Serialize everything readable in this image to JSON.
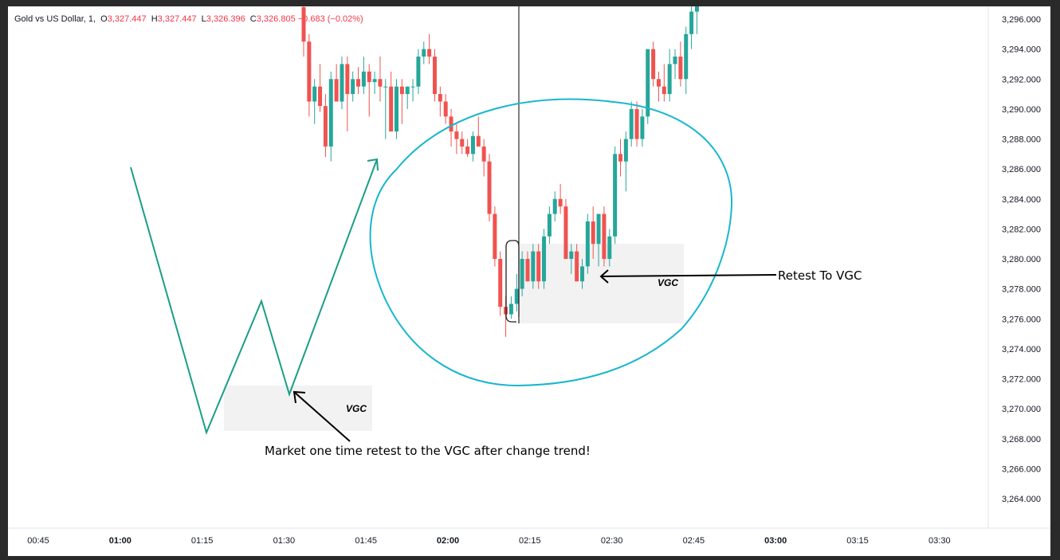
{
  "legend": {
    "symbol": "Gold vs US Dollar, 1,",
    "o_label": "O",
    "o_value": "3,327.447",
    "h_label": "H",
    "h_value": "3,327.447",
    "l_label": "L",
    "l_value": "3,326.396",
    "c_label": "C",
    "c_value": "3,326.805",
    "change": "−0.683 (−0.02%)"
  },
  "colors": {
    "up": "#26a69a",
    "down": "#ef5350",
    "circle": "#19b6cf",
    "zigzag": "#1a9e86",
    "zone": "#f2f2f2"
  },
  "annotations": {
    "main_text": "Market one time retest to the VGC after change trend!",
    "retest_text": "Retest To VGC",
    "vgc_left": "VGC",
    "vgc_right": "VGC"
  },
  "chart_data": {
    "type": "candlestick",
    "price_ticks": [
      "3,296.000",
      "3,294.000",
      "3,292.000",
      "3,290.000",
      "3,288.000",
      "3,286.000",
      "3,284.000",
      "3,282.000",
      "3,280.000",
      "3,278.000",
      "3,276.000",
      "3,274.000",
      "3,272.000",
      "3,270.000",
      "3,268.000",
      "3,266.000",
      "3,264.000"
    ],
    "time_ticks": [
      {
        "label": "00:45",
        "bold": false
      },
      {
        "label": "01:00",
        "bold": true
      },
      {
        "label": "01:15",
        "bold": false
      },
      {
        "label": "01:30",
        "bold": false
      },
      {
        "label": "01:45",
        "bold": false
      },
      {
        "label": "02:00",
        "bold": true
      },
      {
        "label": "02:15",
        "bold": false
      },
      {
        "label": "02:30",
        "bold": false
      },
      {
        "label": "02:45",
        "bold": false
      },
      {
        "label": "03:00",
        "bold": true
      },
      {
        "label": "03:15",
        "bold": false
      },
      {
        "label": "03:30",
        "bold": false
      }
    ],
    "ylim": [
      3262.6,
      3297.4
    ],
    "x_start_minute": 33,
    "candles": [
      [
        3296.8,
        3297.2,
        3293.5,
        3294.5
      ],
      [
        3294.5,
        3295.0,
        3289.5,
        3290.5
      ],
      [
        3290.5,
        3292.0,
        3289.0,
        3291.5
      ],
      [
        3291.5,
        3293.0,
        3289.8,
        3290.2
      ],
      [
        3290.2,
        3291.0,
        3286.8,
        3287.5
      ],
      [
        3287.5,
        3292.5,
        3286.5,
        3292.0
      ],
      [
        3292.0,
        3293.0,
        3290.5,
        3290.5
      ],
      [
        3290.5,
        3293.5,
        3290.0,
        3293.0
      ],
      [
        3293.0,
        3293.5,
        3288.5,
        3291.0
      ],
      [
        3291.0,
        3292.5,
        3290.5,
        3292.0
      ],
      [
        3292.0,
        3292.8,
        3291.0,
        3291.5
      ],
      [
        3291.5,
        3293.5,
        3291.0,
        3292.5
      ],
      [
        3292.5,
        3293.0,
        3289.5,
        3291.8
      ],
      [
        3291.8,
        3292.5,
        3291.0,
        3292.0
      ],
      [
        3292.0,
        3293.5,
        3290.5,
        3291.5
      ],
      [
        3291.5,
        3292.0,
        3288.0,
        3291.5
      ],
      [
        3291.5,
        3292.5,
        3288.5,
        3288.5
      ],
      [
        3288.5,
        3292.0,
        3288.0,
        3291.5
      ],
      [
        3291.5,
        3292.0,
        3289.0,
        3291.0
      ],
      [
        3291.0,
        3291.5,
        3290.0,
        3291.5
      ],
      [
        3291.5,
        3292.0,
        3290.5,
        3291.5
      ],
      [
        3291.5,
        3294.0,
        3291.0,
        3293.5
      ],
      [
        3293.5,
        3294.5,
        3293.0,
        3294.0
      ],
      [
        3294.0,
        3295.0,
        3293.0,
        3293.5
      ],
      [
        3293.5,
        3294.0,
        3290.5,
        3291.0
      ],
      [
        3291.0,
        3291.5,
        3289.5,
        3290.5
      ],
      [
        3290.5,
        3291.0,
        3289.0,
        3289.5
      ],
      [
        3289.5,
        3290.0,
        3287.5,
        3288.5
      ],
      [
        3288.5,
        3289.0,
        3287.0,
        3288.0
      ],
      [
        3288.0,
        3288.5,
        3287.0,
        3287.5
      ],
      [
        3287.5,
        3288.0,
        3286.8,
        3287.0
      ],
      [
        3287.0,
        3288.5,
        3286.5,
        3288.2
      ],
      [
        3288.2,
        3289.5,
        3287.5,
        3287.5
      ],
      [
        3287.5,
        3288.0,
        3285.5,
        3286.5
      ],
      [
        3286.5,
        3287.0,
        3282.5,
        3283.0
      ],
      [
        3283.0,
        3283.5,
        3279.5,
        3280.0
      ],
      [
        3280.0,
        3280.5,
        3276.2,
        3276.8
      ],
      [
        3276.8,
        3277.5,
        3274.8,
        3276.3
      ],
      [
        3276.3,
        3277.5,
        3276.0,
        3277.0
      ],
      [
        3277.0,
        3279.0,
        3276.5,
        3278.0
      ],
      [
        3278.0,
        3280.5,
        3277.5,
        3280.0
      ],
      [
        3280.0,
        3280.5,
        3278.5,
        3278.5
      ],
      [
        3278.5,
        3281.0,
        3278.0,
        3280.5
      ],
      [
        3280.5,
        3281.0,
        3278.0,
        3278.5
      ],
      [
        3278.5,
        3282.0,
        3278.0,
        3281.5
      ],
      [
        3281.5,
        3283.5,
        3281.0,
        3283.0
      ],
      [
        3283.0,
        3284.5,
        3282.5,
        3284.0
      ],
      [
        3284.0,
        3285.0,
        3283.0,
        3283.5
      ],
      [
        3283.5,
        3284.0,
        3280.0,
        3280.0
      ],
      [
        3280.0,
        3281.0,
        3279.0,
        3280.5
      ],
      [
        3280.5,
        3281.0,
        3278.5,
        3278.5
      ],
      [
        3278.5,
        3280.0,
        3278.0,
        3279.5
      ],
      [
        3279.5,
        3283.0,
        3279.0,
        3282.5
      ],
      [
        3282.5,
        3283.5,
        3280.0,
        3281.0
      ],
      [
        3281.0,
        3283.0,
        3279.5,
        3283.0
      ],
      [
        3283.0,
        3283.5,
        3279.5,
        3280.0
      ],
      [
        3280.0,
        3282.0,
        3279.5,
        3281.5
      ],
      [
        3281.5,
        3287.5,
        3281.0,
        3287.0
      ],
      [
        3287.0,
        3288.0,
        3285.5,
        3286.5
      ],
      [
        3286.5,
        3288.5,
        3284.5,
        3288.0
      ],
      [
        3288.0,
        3290.5,
        3287.5,
        3290.0
      ],
      [
        3290.0,
        3290.5,
        3287.5,
        3288.0
      ],
      [
        3288.0,
        3290.0,
        3287.5,
        3289.5
      ],
      [
        3289.5,
        3294.0,
        3289.0,
        3294.0
      ],
      [
        3294.0,
        3294.5,
        3291.5,
        3292.0
      ],
      [
        3292.0,
        3292.5,
        3290.5,
        3291.5
      ],
      [
        3291.5,
        3293.0,
        3290.5,
        3291.0
      ],
      [
        3291.0,
        3294.0,
        3290.5,
        3293.0
      ],
      [
        3293.0,
        3294.0,
        3292.0,
        3293.5
      ],
      [
        3293.5,
        3294.5,
        3291.5,
        3292.0
      ],
      [
        3292.0,
        3295.5,
        3291.0,
        3295.0
      ],
      [
        3295.0,
        3297.0,
        3294.0,
        3296.5
      ],
      [
        3296.5,
        3297.4,
        3295.0,
        3297.2
      ]
    ]
  }
}
